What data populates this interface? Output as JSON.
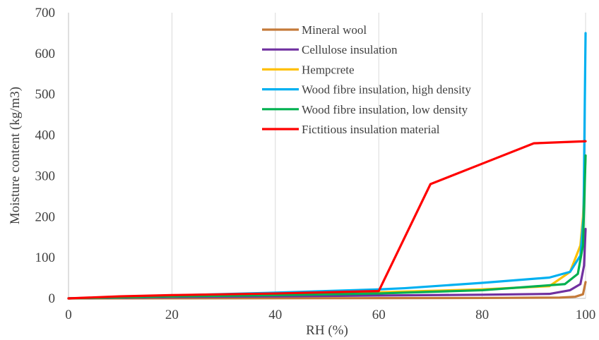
{
  "chart_data": {
    "type": "line",
    "title": "",
    "xlabel": "RH (%)",
    "ylabel": "Moisture content (kg/m3)",
    "xlim": [
      0,
      100
    ],
    "ylim": [
      0,
      700
    ],
    "xticks": [
      0,
      20,
      40,
      60,
      80,
      100
    ],
    "yticks": [
      0,
      100,
      200,
      300,
      400,
      500,
      600,
      700
    ],
    "grid": "vertical",
    "legend": "top-center",
    "series": [
      {
        "name": "Mineral wool",
        "color": "#C47A3A",
        "points": [
          [
            0,
            0
          ],
          [
            20,
            0.2
          ],
          [
            40,
            0.4
          ],
          [
            60,
            0.6
          ],
          [
            80,
            1
          ],
          [
            95,
            2
          ],
          [
            98,
            4
          ],
          [
            99.5,
            10
          ],
          [
            100,
            40
          ]
        ]
      },
      {
        "name": "Cellulose insulation",
        "color": "#7030A0",
        "points": [
          [
            0,
            0
          ],
          [
            20,
            3
          ],
          [
            40,
            5
          ],
          [
            60,
            7
          ],
          [
            80,
            9
          ],
          [
            93,
            11
          ],
          [
            97,
            20
          ],
          [
            99,
            35
          ],
          [
            99.7,
            80
          ],
          [
            100,
            170
          ]
        ]
      },
      {
        "name": "Hempcrete",
        "color": "#FFC000",
        "points": [
          [
            0,
            0
          ],
          [
            20,
            5
          ],
          [
            40,
            10
          ],
          [
            60,
            15
          ],
          [
            80,
            22
          ],
          [
            93,
            30
          ],
          [
            97,
            65
          ],
          [
            99,
            130
          ],
          [
            99.5,
            200
          ],
          [
            100,
            350
          ]
        ]
      },
      {
        "name": "Wood fibre insulation, high density",
        "color": "#00B0F0",
        "points": [
          [
            0,
            0
          ],
          [
            20,
            7
          ],
          [
            40,
            14
          ],
          [
            60,
            22
          ],
          [
            65,
            25
          ],
          [
            80,
            38
          ],
          [
            93,
            51
          ],
          [
            97,
            65
          ],
          [
            99,
            105
          ],
          [
            99.6,
            200
          ],
          [
            100,
            650
          ]
        ]
      },
      {
        "name": "Wood fibre insulation, low density",
        "color": "#00B050",
        "points": [
          [
            0,
            0
          ],
          [
            20,
            5
          ],
          [
            40,
            8
          ],
          [
            60,
            12
          ],
          [
            80,
            20
          ],
          [
            96,
            35
          ],
          [
            98.5,
            60
          ],
          [
            99.5,
            130
          ],
          [
            100,
            350
          ]
        ]
      },
      {
        "name": "Fictitious insulation material",
        "color": "#FF0000",
        "points": [
          [
            0,
            0
          ],
          [
            10,
            5
          ],
          [
            20,
            8
          ],
          [
            40,
            12
          ],
          [
            60,
            18
          ],
          [
            70,
            280
          ],
          [
            80,
            330
          ],
          [
            90,
            380
          ],
          [
            100,
            385
          ]
        ]
      }
    ]
  }
}
